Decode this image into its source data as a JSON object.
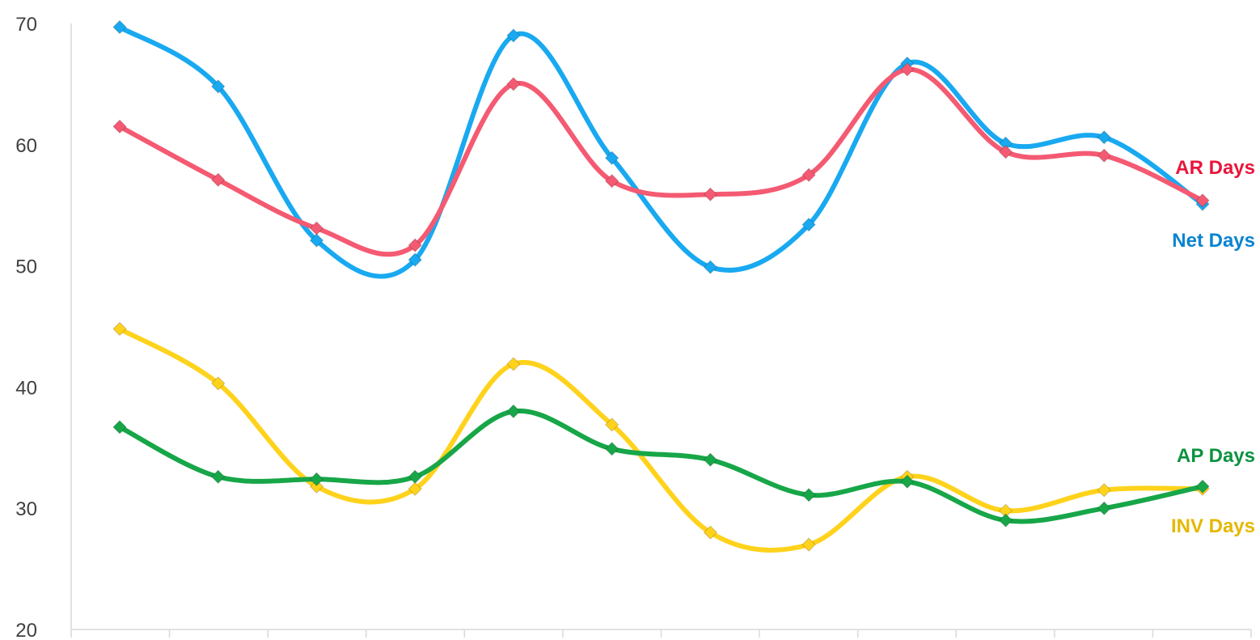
{
  "chart_data": {
    "type": "line",
    "title": "",
    "xlabel": "",
    "ylabel": "",
    "ylim": [
      20,
      70
    ],
    "yticks": [
      20,
      30,
      40,
      50,
      60,
      70
    ],
    "grid": false,
    "smooth": true,
    "marker": "diamond",
    "legend": "inline-right",
    "x": [
      1,
      2,
      3,
      4,
      5,
      6,
      7,
      8,
      9,
      10,
      11,
      12
    ],
    "series": [
      {
        "name": "Net Days",
        "color": "#19A9F0",
        "label_color": "#0A84D0",
        "values": [
          69.7,
          64.8,
          52.1,
          50.5,
          69.0,
          58.9,
          49.9,
          53.4,
          66.7,
          60.1,
          60.6,
          55.1
        ]
      },
      {
        "name": "AR Days",
        "color": "#F45A72",
        "label_color": "#E8163C",
        "values": [
          61.5,
          57.1,
          53.1,
          51.7,
          65.0,
          57.0,
          55.9,
          57.5,
          66.2,
          59.4,
          59.1,
          55.4
        ]
      },
      {
        "name": "INV Days",
        "color": "#FFD21C",
        "label_color": "#E5B800",
        "values": [
          44.8,
          40.3,
          31.8,
          31.6,
          41.9,
          36.9,
          28.0,
          27.0,
          32.6,
          29.8,
          31.5,
          31.6
        ]
      },
      {
        "name": "AP Days",
        "color": "#17A648",
        "label_color": "#0D9340",
        "values": [
          36.7,
          32.6,
          32.4,
          32.6,
          38.0,
          34.9,
          34.0,
          31.1,
          32.2,
          29.0,
          30.0,
          31.8
        ]
      }
    ]
  }
}
